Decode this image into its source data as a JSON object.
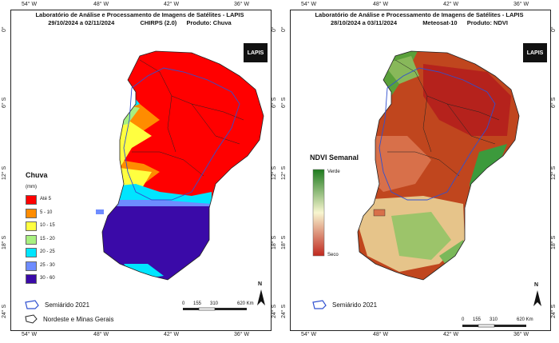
{
  "left_map": {
    "title": "Laboratório de Análise e Processamento de Imagens de Satélites - LAPIS",
    "date_range": "29/10/2024  a 02/11/2024",
    "source": "CHIRPS (2.0)",
    "product": "Produto: Chuva",
    "logo": "LAPIS",
    "legend": {
      "title": "Chuva",
      "unit": "(mm)",
      "classes": [
        {
          "label": "Até 5",
          "color": "#ff0000"
        },
        {
          "label": "5 - 10",
          "color": "#ff8c00"
        },
        {
          "label": "10 - 15",
          "color": "#ffff40"
        },
        {
          "label": "15 - 20",
          "color": "#a8f080"
        },
        {
          "label": "20 - 25",
          "color": "#00e5ff"
        },
        {
          "label": "25 - 30",
          "color": "#6e8cff"
        },
        {
          "label": "30 - 60",
          "color": "#3a0aa8"
        }
      ]
    },
    "footer": {
      "semiarid": "Semiárido 2021",
      "boundary": "Nordeste e Minas Gerais"
    },
    "scale": {
      "labels": [
        "0",
        "155",
        "310",
        "620 Km"
      ]
    },
    "north": "N",
    "x_ticks": [
      "54° W",
      "48° W",
      "42° W",
      "36° W"
    ],
    "y_ticks": [
      "0°",
      "6° S",
      "12° S",
      "18° S",
      "24° S"
    ]
  },
  "right_map": {
    "title": "Laboratório de Análise e Processamento de Imagens de Satélites - LAPIS",
    "date_range": "28/10/2024  a  03/11/2024",
    "source": "Meteosat-10",
    "product": "Produto: NDVI",
    "logo": "LAPIS",
    "legend": {
      "title": "NDVI Semanal",
      "high": "Verde",
      "low": "Seco",
      "colors": [
        "#1e7b1e",
        "#f8f6d0",
        "#c0281e"
      ]
    },
    "footer": {
      "semiarid": "Semiárido 2021"
    },
    "scale": {
      "labels": [
        "0",
        "155",
        "310",
        "620 Km"
      ]
    },
    "north": "N",
    "x_ticks": [
      "54° W",
      "48° W",
      "42° W",
      "36° W"
    ],
    "y_ticks": [
      "0°",
      "6° S",
      "12° S",
      "18° S",
      "24° S"
    ]
  }
}
